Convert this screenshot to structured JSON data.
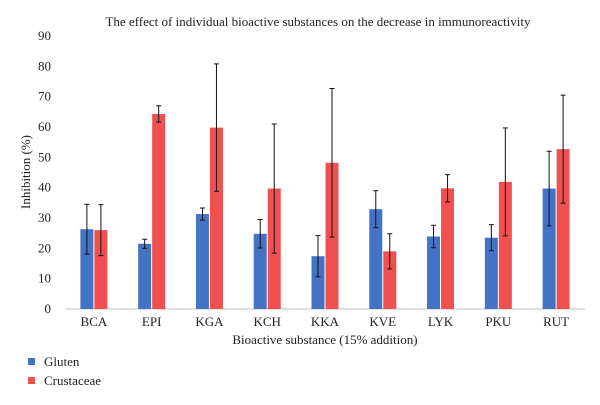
{
  "chart_data": {
    "type": "bar",
    "title": "The effect of individual bioactive substances on the decrease in immunoreactivity",
    "xlabel": "Bioactive substance (15% addition)",
    "ylabel": "Inhibition (%)",
    "ylim": [
      0,
      90
    ],
    "yticks": [
      0,
      10,
      20,
      30,
      40,
      50,
      60,
      70,
      80,
      90
    ],
    "grid": false,
    "legend_position": "bottom-left",
    "categories": [
      "BCA",
      "EPI",
      "KGA",
      "KCH",
      "KKA",
      "KVE",
      "LYK",
      "PKU",
      "RUT"
    ],
    "series": [
      {
        "name": "Gluten",
        "color": "#4472C4",
        "values": [
          26.3,
          21.5,
          31.3,
          24.8,
          17.4,
          32.9,
          23.9,
          23.5,
          39.7
        ],
        "error": [
          8.2,
          1.5,
          2.0,
          4.7,
          6.8,
          6.1,
          3.7,
          4.3,
          12.3
        ]
      },
      {
        "name": "Crustaceae",
        "color": "#F05050",
        "values": [
          26.0,
          64.3,
          59.8,
          39.7,
          48.2,
          19.0,
          39.8,
          41.9,
          52.7
        ],
        "error": [
          8.4,
          2.7,
          21.0,
          21.3,
          24.5,
          5.8,
          4.5,
          17.8,
          17.8
        ]
      }
    ]
  }
}
